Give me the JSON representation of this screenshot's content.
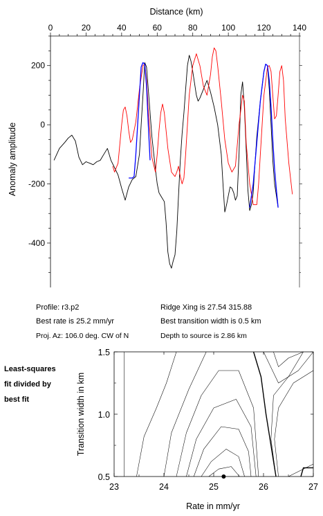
{
  "info": {
    "profile": "Profile: r3.p2",
    "best_rate": "Best rate is 25.2 mm/yr",
    "proj_az": "Proj. Az: 106.0 deg. CW of N",
    "ridge_xing": "Ridge Xing is 27.54 315.88",
    "best_transition": "Best transition width is 0.5 km",
    "depth": "Depth to source is   2.86 km"
  },
  "side_note": [
    "Least-squares",
    "fit divided by",
    "best fit"
  ],
  "chart_data": [
    {
      "type": "line",
      "xlabel": "Distance (km)",
      "ylabel": "Anomaly amplitude",
      "xlim": [
        0,
        140
      ],
      "ylim": [
        -550,
        300
      ],
      "x_ticks": [
        0,
        20,
        40,
        60,
        80,
        100,
        120,
        140
      ],
      "y_ticks": [
        200,
        0,
        -200,
        -400
      ],
      "x_axis_position": "top",
      "grid": false,
      "series": [
        {
          "key": "observed",
          "color": "#000000",
          "x": [
            2,
            5,
            8,
            10,
            12,
            14,
            16,
            18,
            20,
            22,
            24,
            26,
            28,
            30,
            32,
            34,
            36,
            38,
            40,
            42,
            44,
            46,
            47,
            48,
            50,
            51,
            52,
            53,
            54,
            55,
            57,
            59,
            60,
            61,
            62,
            64,
            65,
            66,
            67,
            68,
            69,
            70,
            71,
            72,
            73,
            74,
            75,
            76,
            77,
            78,
            79,
            80,
            81,
            82,
            83,
            84,
            86,
            88,
            90,
            92,
            94,
            96,
            97,
            98,
            99,
            100,
            101,
            102,
            103,
            104,
            105,
            106,
            107,
            108,
            109,
            110,
            111,
            112,
            113,
            114,
            115,
            116,
            118,
            120,
            121,
            122,
            123,
            124,
            125,
            126,
            127,
            128
          ],
          "y": [
            -120,
            -80,
            -60,
            -45,
            -35,
            -55,
            -110,
            -135,
            -125,
            -130,
            -135,
            -125,
            -120,
            -100,
            -80,
            -120,
            -145,
            -170,
            -215,
            -255,
            -210,
            -185,
            -180,
            -175,
            -100,
            0,
            100,
            210,
            195,
            120,
            -40,
            -150,
            -200,
            -230,
            -240,
            -260,
            -330,
            -430,
            -470,
            -485,
            -460,
            -440,
            -360,
            -240,
            -120,
            -30,
            40,
            120,
            200,
            235,
            215,
            180,
            140,
            100,
            80,
            90,
            120,
            150,
            110,
            60,
            0,
            -100,
            -200,
            -295,
            -270,
            -240,
            -210,
            -215,
            -230,
            -255,
            -240,
            -100,
            100,
            145,
            60,
            -80,
            -220,
            -290,
            -270,
            -230,
            -130,
            -40,
            80,
            180,
            205,
            200,
            120,
            0,
            -120,
            -200,
            -240,
            -280
          ]
        },
        {
          "key": "model",
          "color": "#ff0000",
          "x": [
            35,
            36,
            38,
            40,
            41,
            42,
            43,
            44,
            45,
            46,
            48,
            50,
            52,
            53,
            54,
            55,
            57,
            59,
            60,
            61,
            62,
            63,
            64,
            66,
            68,
            70,
            71,
            72,
            73,
            74,
            75,
            76,
            78,
            80,
            82,
            84,
            86,
            88,
            90,
            91,
            92,
            93,
            94,
            96,
            98,
            100,
            102,
            104,
            106,
            108,
            109,
            110,
            112,
            114,
            116,
            117,
            118,
            120,
            122,
            123,
            124,
            125,
            126,
            127,
            128,
            129,
            130,
            131,
            132,
            134,
            136
          ],
          "y": [
            -140,
            -160,
            -130,
            0,
            50,
            60,
            30,
            -20,
            -60,
            -50,
            10,
            120,
            200,
            205,
            150,
            50,
            -110,
            -160,
            -100,
            -20,
            40,
            70,
            40,
            -80,
            -160,
            -175,
            -160,
            -140,
            -175,
            -200,
            -180,
            -100,
            100,
            200,
            240,
            200,
            130,
            100,
            170,
            230,
            260,
            250,
            200,
            80,
            -50,
            -130,
            -160,
            -140,
            0,
            100,
            80,
            -60,
            -200,
            -270,
            -270,
            -200,
            -100,
            100,
            195,
            200,
            180,
            100,
            20,
            30,
            100,
            180,
            200,
            150,
            20,
            -130,
            -235
          ]
        },
        {
          "key": "fit-segment-1",
          "color": "#0000ff",
          "x": [
            44,
            46,
            47,
            48,
            50,
            51,
            52,
            53,
            54,
            55,
            56
          ],
          "y": [
            -180,
            -180,
            -175,
            -100,
            100,
            195,
            210,
            205,
            130,
            0,
            -120
          ]
        },
        {
          "key": "fit-segment-2",
          "color": "#0000ff",
          "x": [
            112,
            114,
            116,
            118,
            120,
            121,
            122,
            123,
            124,
            125,
            126,
            127,
            128
          ],
          "y": [
            -280,
            -200,
            -60,
            80,
            180,
            205,
            200,
            150,
            60,
            -50,
            -150,
            -220,
            -280
          ]
        }
      ]
    },
    {
      "type": "contour",
      "xlabel": "Rate in mm/yr",
      "ylabel": "Transition width in km",
      "xlim": [
        23,
        27
      ],
      "ylim": [
        0.5,
        1.5
      ],
      "x_ticks": [
        23,
        24,
        25,
        26,
        27
      ],
      "y_ticks": [
        0.5,
        1.0,
        1.5
      ],
      "y_tick_labels": [
        "0.5",
        "1.0",
        "1.5"
      ],
      "best_fit_point": {
        "rate": 25.2,
        "width": 0.5
      },
      "contours": [
        {
          "bold": false,
          "x": [
            23.2,
            23.2
          ],
          "y": [
            0.5,
            1.5
          ]
        },
        {
          "bold": false,
          "x": [
            23.45,
            23.6,
            23.85,
            24.05,
            24.25
          ],
          "y": [
            0.5,
            0.82,
            1.05,
            1.25,
            1.5
          ]
        },
        {
          "bold": false,
          "x": [
            24.0,
            24.15,
            24.5,
            24.85
          ],
          "y": [
            0.5,
            0.85,
            1.2,
            1.5
          ]
        },
        {
          "bold": false,
          "x": [
            24.25,
            24.45,
            24.75,
            25.1,
            25.5,
            25.8,
            25.9
          ],
          "y": [
            0.5,
            0.85,
            1.15,
            1.35,
            1.35,
            1.05,
            0.5
          ]
        },
        {
          "bold": false,
          "x": [
            24.45,
            24.65,
            25.0,
            25.45,
            25.75,
            25.85
          ],
          "y": [
            0.5,
            0.8,
            1.05,
            1.12,
            0.9,
            0.5
          ]
        },
        {
          "bold": false,
          "x": [
            24.6,
            24.8,
            25.15,
            25.5,
            25.7,
            25.75
          ],
          "y": [
            0.5,
            0.72,
            0.9,
            0.88,
            0.7,
            0.5
          ]
        },
        {
          "bold": false,
          "x": [
            24.75,
            24.95,
            25.25,
            25.5,
            25.62
          ],
          "y": [
            0.5,
            0.62,
            0.72,
            0.66,
            0.5
          ]
        },
        {
          "bold": false,
          "x": [
            24.9,
            25.1,
            25.35,
            25.52
          ],
          "y": [
            0.5,
            0.56,
            0.58,
            0.5
          ]
        },
        {
          "bold": true,
          "x": [
            25.8,
            25.95,
            26.05,
            26.15,
            26.25
          ],
          "y": [
            1.5,
            1.3,
            1.0,
            0.75,
            0.5
          ]
        },
        {
          "bold": true,
          "x": [
            26.75,
            26.8,
            26.85,
            27.0
          ],
          "y": [
            0.5,
            0.57,
            0.57,
            0.57
          ]
        },
        {
          "bold": false,
          "x": [
            26.25,
            26.15,
            26.2,
            26.5,
            26.8
          ],
          "y": [
            0.5,
            0.8,
            1.15,
            1.3,
            1.5
          ]
        },
        {
          "bold": false,
          "x": [
            26.3,
            26.22,
            26.3,
            26.6,
            27.0
          ],
          "y": [
            0.5,
            0.8,
            1.05,
            1.25,
            1.35
          ]
        },
        {
          "bold": false,
          "x": [
            26.2,
            26.3,
            26.5,
            26.8
          ],
          "y": [
            1.5,
            1.38,
            1.45,
            1.5
          ]
        },
        {
          "bold": false,
          "x": [
            26.0,
            26.3,
            26.7,
            27.0
          ],
          "y": [
            1.5,
            1.25,
            1.35,
            1.5
          ]
        },
        {
          "bold": false,
          "x": [
            26.5,
            26.9,
            27.0
          ],
          "y": [
            0.5,
            0.58,
            0.6
          ]
        }
      ]
    }
  ]
}
